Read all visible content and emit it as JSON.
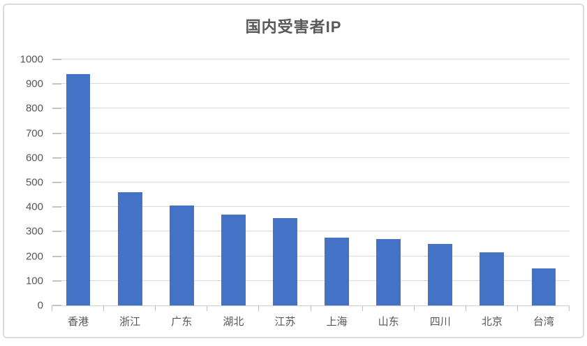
{
  "chart_data": {
    "type": "bar",
    "title": "国内受害者IP",
    "categories": [
      "香港",
      "浙江",
      "广东",
      "湖北",
      "江苏",
      "上海",
      "山东",
      "四川",
      "北京",
      "台湾"
    ],
    "values": [
      940,
      460,
      405,
      370,
      355,
      275,
      270,
      250,
      215,
      150
    ],
    "xlabel": "",
    "ylabel": "",
    "ylim": [
      0,
      1000
    ],
    "ytick_step": 100,
    "ytick_labels": [
      "0",
      "100",
      "200",
      "300",
      "400",
      "500",
      "600",
      "700",
      "800",
      "900",
      "1000"
    ],
    "grid": "horizontal-major",
    "legend": "none",
    "colors": {
      "bar": "#4472c4",
      "gridline": "#d9d9d9",
      "axis_line": "#cfcfcf",
      "tick": "#c3c3c3",
      "title_text": "#595959",
      "label_text": "#565656",
      "panel_border": "#dcdcde",
      "background": "#ffffff"
    }
  }
}
